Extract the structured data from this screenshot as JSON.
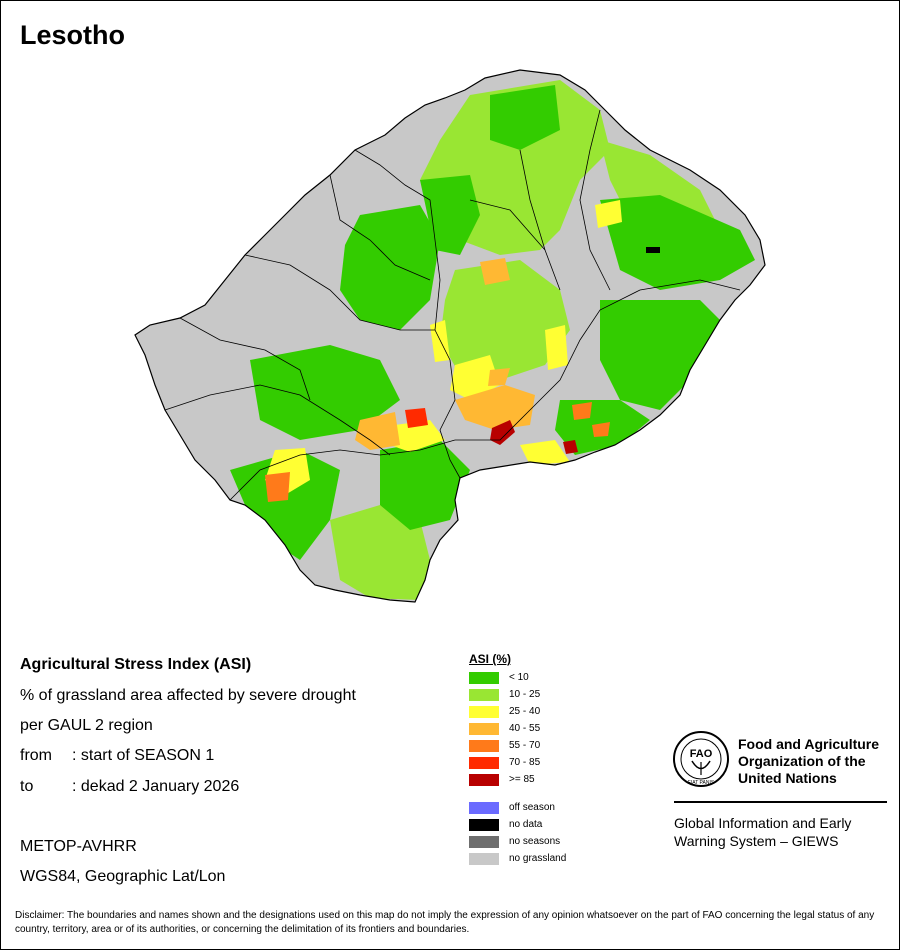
{
  "map": {
    "title": "Lesotho"
  },
  "info": {
    "title": "Agricultural Stress Index (ASI)",
    "subtitle": "% of grassland area affected by severe drought",
    "subtitle2": "per GAUL 2 region",
    "from_label": "from",
    "from_value": ": start of SEASON 1",
    "to_label": "to",
    "to_value": ": dekad 2 January 2026",
    "sensor": "METOP-AVHRR",
    "projection": "WGS84, Geographic Lat/Lon"
  },
  "legend": {
    "title": "ASI (%)",
    "classes": [
      {
        "label": "< 10",
        "color": "#33cc00"
      },
      {
        "label": "10 - 25",
        "color": "#99e633"
      },
      {
        "label": "25 - 40",
        "color": "#ffff33"
      },
      {
        "label": "40 - 55",
        "color": "#ffb833"
      },
      {
        "label": "55 - 70",
        "color": "#ff7a1a"
      },
      {
        "label": "70 - 85",
        "color": "#ff2a00"
      },
      {
        "label": ">= 85",
        "color": "#b80000"
      }
    ],
    "special": [
      {
        "label": "off season",
        "color": "#6b6bff"
      },
      {
        "label": "no data",
        "color": "#000000"
      },
      {
        "label": "no seasons",
        "color": "#6e6e6e"
      },
      {
        "label": "no grassland",
        "color": "#c8c8c8"
      }
    ]
  },
  "organization": {
    "logo_text": "FAO",
    "logo_motto": "FIAT PANIS",
    "name_line1": "Food and Agriculture",
    "name_line2": "Organization of the",
    "name_line3": "United Nations",
    "system_line1": "Global Information and Early",
    "system_line2": "Warning System – GIEWS"
  },
  "disclaimer": "Disclaimer: The boundaries and names shown and the designations used on this map do not imply the expression of any opinion whatsoever on the part of FAO concerning the legal status of any country, territory, area or of its authorities, or concerning the delimitation of its frontiers and boundaries."
}
